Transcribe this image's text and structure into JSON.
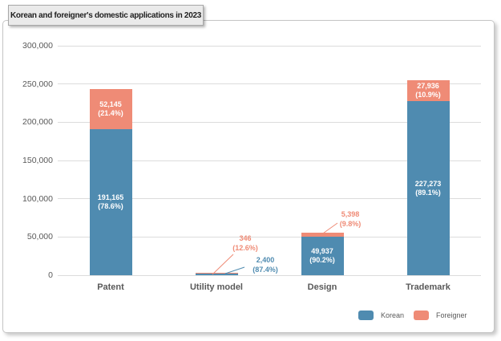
{
  "title_box": {
    "label": "Korean and foreigner's domestic applications in 2023"
  },
  "legend": {
    "items": [
      {
        "label": "Korean",
        "color": "#4f8bb0"
      },
      {
        "label": "Foreigner",
        "color": "#ef8b76"
      }
    ]
  },
  "colors": {
    "korean": "#4f8bb0",
    "foreigner": "#ef8b76",
    "grid": "#dcdcdc",
    "axis_text": "#595959"
  },
  "chart_data": {
    "type": "bar",
    "stacked": true,
    "title": "Korean and foreigner's domestic applications in 2023",
    "categories": [
      "Patent",
      "Utility model",
      "Design",
      "Trademark"
    ],
    "series": [
      {
        "name": "Korean",
        "color": "#4f8bb0",
        "values": [
          191165,
          2400,
          49937,
          227273
        ],
        "value_labels": [
          "191,165",
          "2,400",
          "49,937",
          "227,273"
        ],
        "percent_labels": [
          "(78.6%)",
          "(87.4%)",
          "(90.2%)",
          "(89.1%)"
        ],
        "label_placement": [
          "inside",
          "callout",
          "inside",
          "inside"
        ]
      },
      {
        "name": "Foreigner",
        "color": "#ef8b76",
        "values": [
          52145,
          346,
          5398,
          27936
        ],
        "value_labels": [
          "52,145",
          "346",
          "5,398",
          "27,936"
        ],
        "percent_labels": [
          "(21.4%)",
          "(12.6%)",
          "(9.8%)",
          "(10.9%)"
        ],
        "label_placement": [
          "inside",
          "callout",
          "callout",
          "inside"
        ]
      }
    ],
    "xlabel": "",
    "ylabel": "",
    "ylim": [
      0,
      300000
    ],
    "yticks": [
      "0",
      "50,000",
      "100,000",
      "150,000",
      "200,000",
      "250,000",
      "300,000"
    ],
    "grid": "horizontal",
    "legend_position": "bottom-right"
  }
}
